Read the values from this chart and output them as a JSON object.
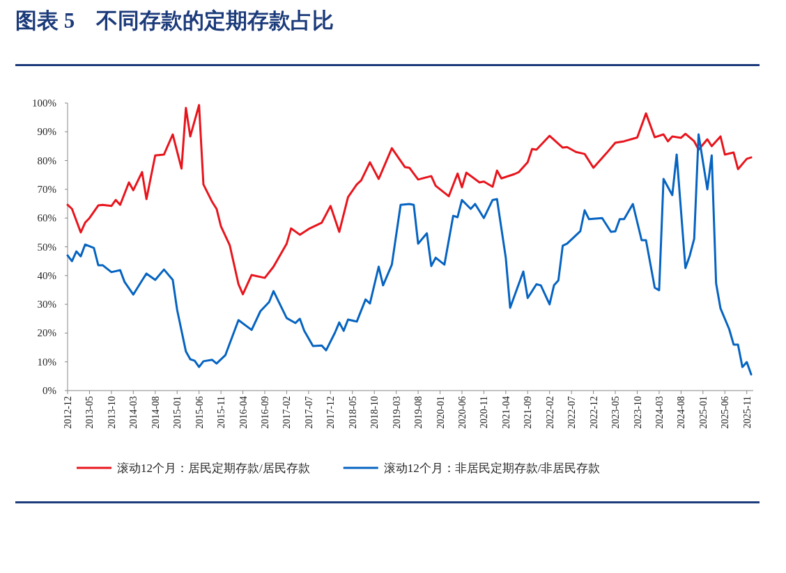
{
  "chart_data": {
    "type": "line",
    "title": "图表 5　不同存款的定期存款占比",
    "xlim": [
      "2012-12",
      "2025-12"
    ],
    "xticks": [
      "2012-12",
      "2013-05",
      "2013-10",
      "2014-03",
      "2014-08",
      "2015-01",
      "2015-06",
      "2015-11",
      "2016-04",
      "2016-09",
      "2017-02",
      "2017-07",
      "2017-12",
      "2018-05",
      "2018-10",
      "2019-03",
      "2019-08",
      "2020-01",
      "2020-06",
      "2020-11",
      "2021-04",
      "2021-09",
      "2022-02",
      "2022-07",
      "2022-12",
      "2023-05",
      "2023-10",
      "2024-03",
      "2024-08",
      "2025-01",
      "2025-06",
      "2025-11"
    ],
    "ylim": [
      0,
      100
    ],
    "yticks": [
      {
        "value": 0,
        "label": "0%"
      },
      {
        "value": 10,
        "label": "10%"
      },
      {
        "value": 20,
        "label": "20%"
      },
      {
        "value": 30,
        "label": "30%"
      },
      {
        "value": 40,
        "label": "40%"
      },
      {
        "value": 50,
        "label": "50%"
      },
      {
        "value": 60,
        "label": "60%"
      },
      {
        "value": 70,
        "label": "70%"
      },
      {
        "value": 80,
        "label": "80%"
      },
      {
        "value": 90,
        "label": "90%"
      },
      {
        "value": 100,
        "label": "100%"
      }
    ],
    "grid": false,
    "legend": "bottom",
    "marker": "none",
    "line_style": "solid",
    "series": [
      {
        "name": "滚动12个月：居民定期存款/居民存款",
        "color": "#e8141c",
        "x": [
          "2012-12",
          "2013-01",
          "2013-03",
          "2013-04",
          "2013-05",
          "2013-07",
          "2013-08",
          "2013-10",
          "2013-11",
          "2013-12",
          "2014-02",
          "2014-03",
          "2014-05",
          "2014-06",
          "2014-08",
          "2014-10",
          "2014-12",
          "2015-02",
          "2015-03",
          "2015-04",
          "2015-06",
          "2015-07",
          "2015-09",
          "2015-10",
          "2015-11",
          "2016-01",
          "2016-03",
          "2016-04",
          "2016-06",
          "2016-09",
          "2016-11",
          "2017-02",
          "2017-03",
          "2017-05",
          "2017-07",
          "2017-10",
          "2017-12",
          "2018-02",
          "2018-04",
          "2018-06",
          "2018-07",
          "2018-09",
          "2018-11",
          "2019-02",
          "2019-05",
          "2019-06",
          "2019-08",
          "2019-11",
          "2019-12",
          "2020-03",
          "2020-05",
          "2020-06",
          "2020-07",
          "2020-10",
          "2020-11",
          "2021-01",
          "2021-02",
          "2021-03",
          "2021-06",
          "2021-07",
          "2021-09",
          "2021-10",
          "2021-11",
          "2022-02",
          "2022-05",
          "2022-06",
          "2022-08",
          "2022-10",
          "2022-12",
          "2023-03",
          "2023-05",
          "2023-07",
          "2023-10",
          "2023-12",
          "2024-02",
          "2024-04",
          "2024-05",
          "2024-06",
          "2024-08",
          "2024-09",
          "2024-11",
          "2024-12",
          "2025-02",
          "2025-03",
          "2025-05",
          "2025-06",
          "2025-08",
          "2025-09",
          "2025-11",
          "2025-12"
        ],
        "values": [
          64.6,
          63.2,
          55.0,
          58.4,
          60.0,
          64.4,
          64.6,
          64.2,
          66.3,
          64.6,
          72.4,
          69.7,
          76.0,
          66.6,
          81.8,
          82.1,
          89.1,
          77.2,
          98.3,
          88.4,
          99.3,
          71.7,
          65.6,
          63.2,
          57.1,
          50.6,
          37.0,
          33.5,
          40.2,
          39.2,
          43.1,
          51.1,
          56.4,
          54.2,
          56.2,
          58.4,
          64.2,
          55.2,
          67.3,
          71.7,
          73.1,
          79.4,
          73.6,
          84.3,
          77.7,
          77.5,
          73.4,
          74.6,
          71.2,
          67.6,
          75.5,
          70.7,
          75.8,
          72.4,
          72.7,
          70.9,
          76.5,
          73.8,
          75.3,
          76.0,
          79.4,
          84.0,
          83.8,
          88.6,
          84.5,
          84.7,
          83.0,
          82.3,
          77.5,
          82.6,
          86.2,
          86.7,
          88.0,
          96.4,
          88.1,
          89.1,
          86.7,
          88.4,
          87.9,
          89.3,
          86.7,
          83.8,
          87.4,
          85.0,
          88.4,
          82.1,
          82.8,
          77.0,
          80.6,
          81.1
        ]
      },
      {
        "name": "滚动12个月：非居民定期存款/非居民存款",
        "color": "#0563c1",
        "x": [
          "2012-12",
          "2013-01",
          "2013-02",
          "2013-03",
          "2013-04",
          "2013-06",
          "2013-07",
          "2013-08",
          "2013-10",
          "2013-12",
          "2014-01",
          "2014-03",
          "2014-05",
          "2014-06",
          "2014-08",
          "2014-10",
          "2014-12",
          "2015-01",
          "2015-03",
          "2015-04",
          "2015-05",
          "2015-06",
          "2015-07",
          "2015-09",
          "2015-10",
          "2015-12",
          "2016-03",
          "2016-06",
          "2016-08",
          "2016-10",
          "2016-11",
          "2017-02",
          "2017-04",
          "2017-05",
          "2017-06",
          "2017-08",
          "2017-10",
          "2017-11",
          "2018-01",
          "2018-02",
          "2018-03",
          "2018-04",
          "2018-06",
          "2018-08",
          "2018-09",
          "2018-11",
          "2018-12",
          "2019-02",
          "2019-04",
          "2019-06",
          "2019-07",
          "2019-08",
          "2019-10",
          "2019-11",
          "2019-12",
          "2020-02",
          "2020-04",
          "2020-05",
          "2020-06",
          "2020-08",
          "2020-09",
          "2020-11",
          "2021-01",
          "2021-02",
          "2021-04",
          "2021-05",
          "2021-08",
          "2021-09",
          "2021-11",
          "2021-12",
          "2022-02",
          "2022-03",
          "2022-04",
          "2022-05",
          "2022-06",
          "2022-09",
          "2022-10",
          "2022-11",
          "2023-02",
          "2023-04",
          "2023-05",
          "2023-06",
          "2023-07",
          "2023-09",
          "2023-11",
          "2023-12",
          "2024-02",
          "2024-03",
          "2024-04",
          "2024-06",
          "2024-07",
          "2024-09",
          "2024-10",
          "2024-11",
          "2024-12",
          "2025-02",
          "2025-03",
          "2025-04",
          "2025-05",
          "2025-07",
          "2025-08",
          "2025-09",
          "2025-10",
          "2025-11",
          "2025-12"
        ],
        "values": [
          47.0,
          45.0,
          48.4,
          46.7,
          50.8,
          49.6,
          43.6,
          43.6,
          41.2,
          41.9,
          37.8,
          33.4,
          38.3,
          40.7,
          38.5,
          42.1,
          38.5,
          28.1,
          13.6,
          10.9,
          10.4,
          8.2,
          10.2,
          10.7,
          9.4,
          12.3,
          24.5,
          21.1,
          27.6,
          30.8,
          34.6,
          25.2,
          23.5,
          25.0,
          20.8,
          15.5,
          15.7,
          14.0,
          20.1,
          23.7,
          20.8,
          24.7,
          24.0,
          31.7,
          30.3,
          43.1,
          36.6,
          43.8,
          64.6,
          64.9,
          64.6,
          51.1,
          54.7,
          43.3,
          46.2,
          43.8,
          60.8,
          60.3,
          66.3,
          63.2,
          64.9,
          60.0,
          66.3,
          66.6,
          46.2,
          28.8,
          41.4,
          32.2,
          37.0,
          36.6,
          30.0,
          36.6,
          38.3,
          50.4,
          51.1,
          55.4,
          62.7,
          59.6,
          60.0,
          55.2,
          55.4,
          59.6,
          59.6,
          64.9,
          52.3,
          52.3,
          35.8,
          34.9,
          73.6,
          68.0,
          82.1,
          42.6,
          47.0,
          52.8,
          89.1,
          70.0,
          81.8,
          37.3,
          28.6,
          21.3,
          16.0,
          16.0,
          8.2,
          9.9,
          5.6
        ]
      }
    ]
  }
}
